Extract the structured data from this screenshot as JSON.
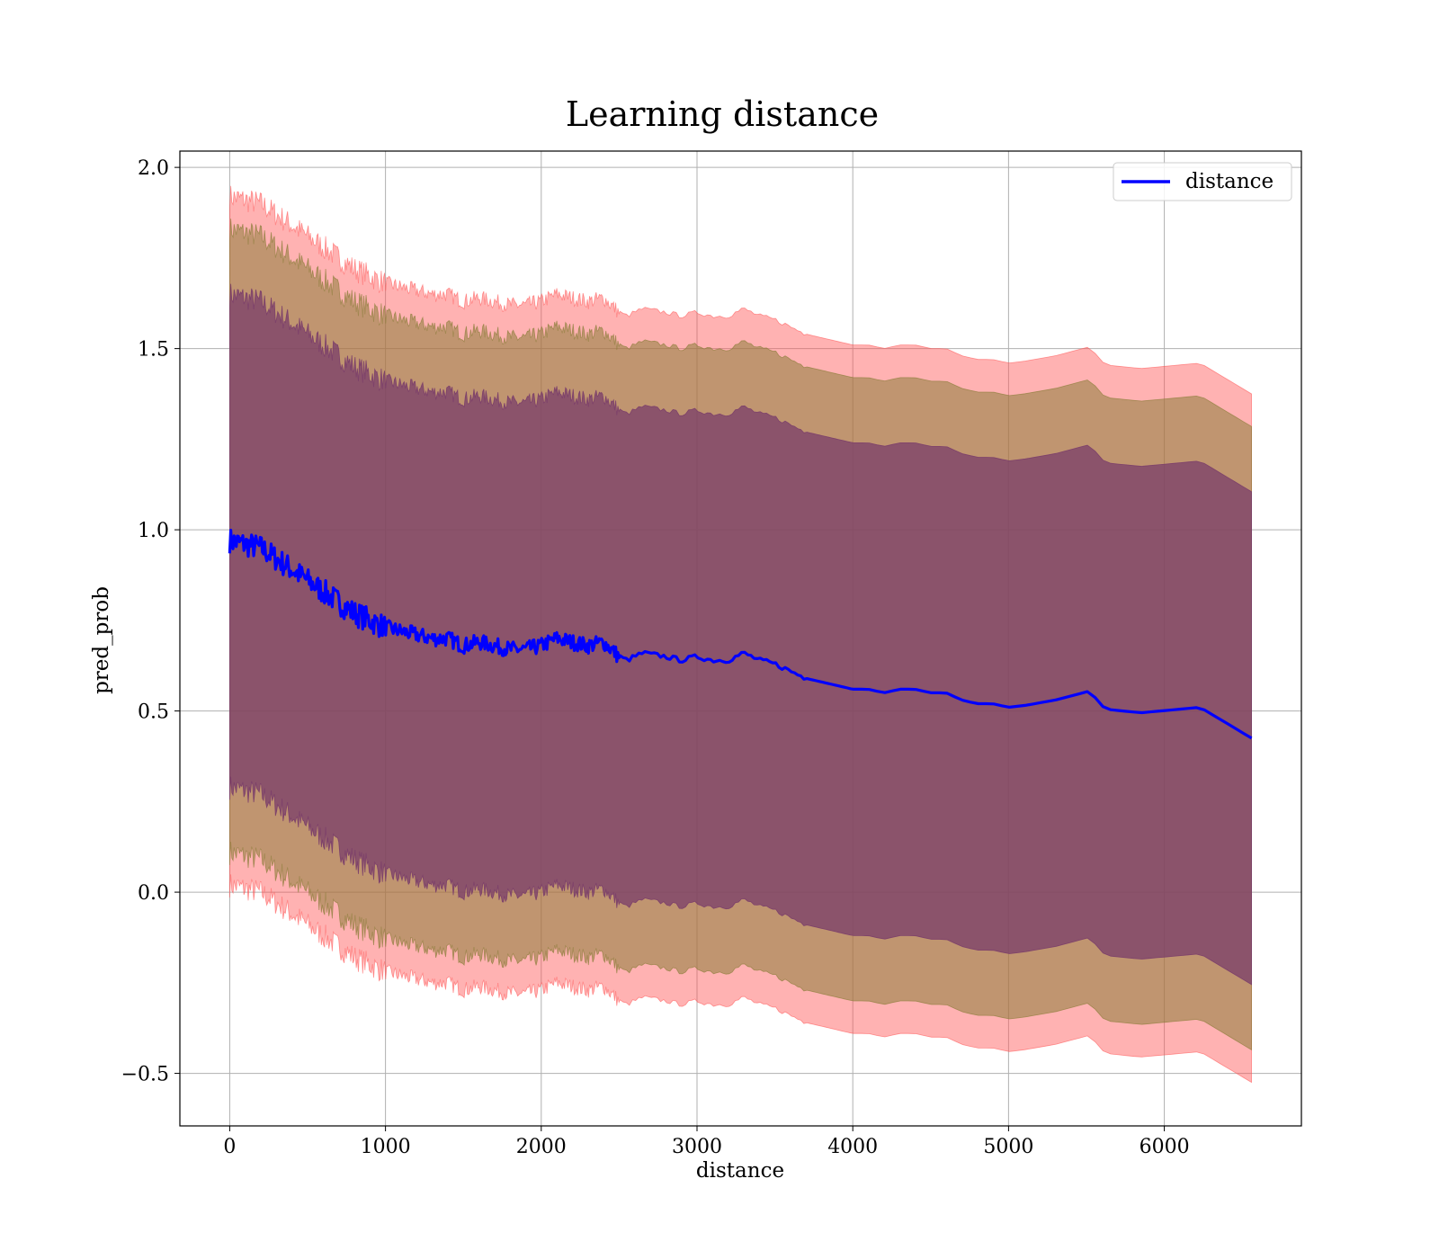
{
  "chart_data": {
    "type": "line",
    "title": "Learning distance",
    "xlabel": "distance",
    "ylabel": "pred_prob",
    "xlim": [
      -320,
      6880
    ],
    "ylim": [
      -0.645,
      2.045
    ],
    "xticks": [
      0,
      1000,
      2000,
      3000,
      4000,
      5000,
      6000
    ],
    "xtick_labels": [
      "0",
      "1000",
      "2000",
      "3000",
      "4000",
      "5000",
      "6000"
    ],
    "yticks": [
      -0.5,
      0.0,
      0.5,
      1.0,
      1.5,
      2.0
    ],
    "ytick_labels": [
      "−0.5",
      "0.0",
      "0.5",
      "1.0",
      "1.5",
      "2.0"
    ],
    "grid": true,
    "legend": {
      "position": "top-right",
      "entries": [
        "distance"
      ]
    },
    "series": [
      {
        "name": "distance",
        "color": "#0000ff",
        "x": [
          0,
          100,
          200,
          300,
          400,
          500,
          600,
          700,
          800,
          900,
          1000,
          1100,
          1200,
          1300,
          1400,
          1500,
          1600,
          1700,
          1800,
          1900,
          2000,
          2100,
          2200,
          2300,
          2400,
          2450,
          2500,
          2550,
          2650,
          2800,
          2900,
          3000,
          3100,
          3200,
          3300,
          3400,
          3500,
          3600,
          3700,
          3800,
          3900,
          4000,
          4100,
          4200,
          4300,
          4400,
          4500,
          4600,
          4700,
          4800,
          4900,
          5000,
          5100,
          5300,
          5520,
          5620,
          5850,
          6230,
          6560
        ],
        "y": [
          0.97,
          0.96,
          0.95,
          0.92,
          0.89,
          0.86,
          0.83,
          0.8,
          0.77,
          0.75,
          0.73,
          0.72,
          0.71,
          0.7,
          0.7,
          0.68,
          0.69,
          0.68,
          0.67,
          0.67,
          0.68,
          0.7,
          0.69,
          0.68,
          0.69,
          0.67,
          0.65,
          0.64,
          0.66,
          0.65,
          0.64,
          0.65,
          0.64,
          0.64,
          0.66,
          0.64,
          0.63,
          0.61,
          0.59,
          0.58,
          0.57,
          0.56,
          0.56,
          0.55,
          0.56,
          0.56,
          0.55,
          0.55,
          0.53,
          0.52,
          0.52,
          0.51,
          0.515,
          0.53,
          0.555,
          0.505,
          0.495,
          0.51,
          0.425
        ]
      }
    ],
    "bands": [
      {
        "sigma": 3,
        "color": "#ff5555",
        "opacity": 0.45,
        "half_width_start": 0.95,
        "half_width_end": 0.95
      },
      {
        "sigma": 2,
        "color": "#8c7d3a",
        "opacity": 0.55,
        "half_width_start": 0.86,
        "half_width_end": 0.86
      },
      {
        "sigma": 1,
        "color": "#7a3d6a",
        "opacity": 0.75,
        "half_width_start": 0.68,
        "half_width_end": 0.68
      }
    ]
  }
}
